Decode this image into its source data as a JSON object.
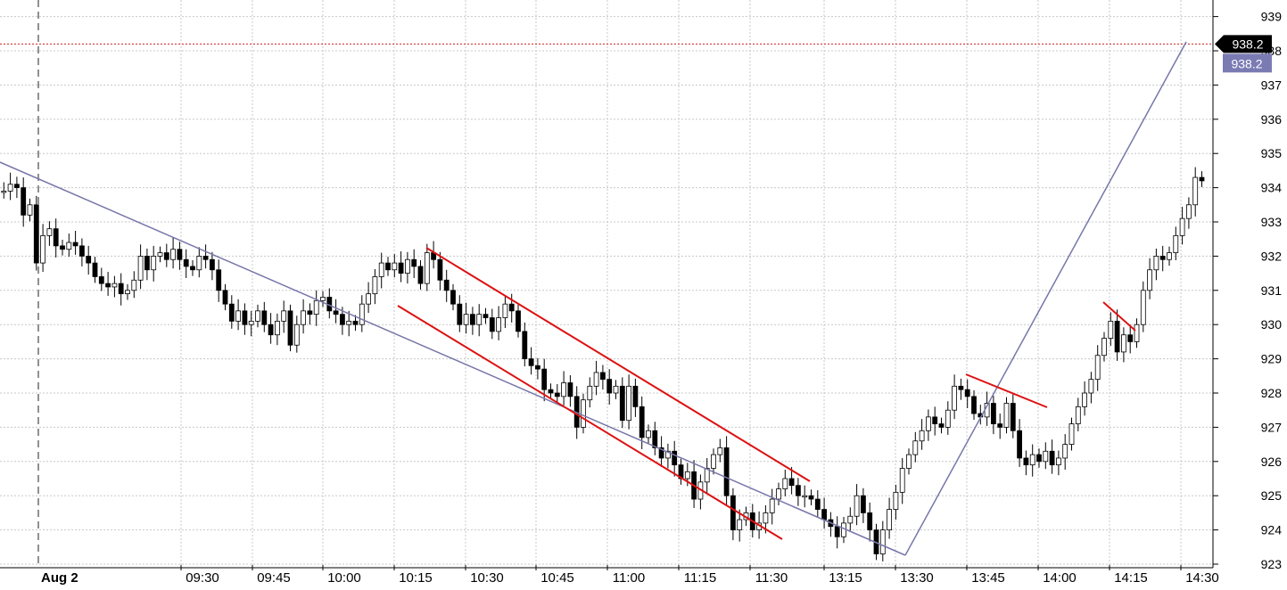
{
  "chart_data": {
    "type": "candlestick",
    "date_label": "Aug 2",
    "x_ticks": [
      "09:30",
      "09:45",
      "10:00",
      "10:15",
      "10:30",
      "10:45",
      "11:00",
      "11:15",
      "11:30",
      "13:15",
      "13:30",
      "13:45",
      "14:00",
      "14:15",
      "14:30"
    ],
    "y_ticks": [
      923,
      924,
      925,
      926,
      927,
      928,
      929,
      930,
      931,
      932,
      933,
      934,
      935,
      936,
      937,
      938,
      939
    ],
    "ylim": [
      922.7,
      939.4
    ],
    "grid": true,
    "last_price": 938.2,
    "last_price_label": "938.2",
    "projected_price_label": "938.2",
    "closes": [
      933.9,
      933.9,
      934.1,
      934.0,
      933.2,
      933.5,
      931.8,
      932.6,
      932.8,
      932.3,
      932.2,
      932.4,
      932.3,
      932.0,
      931.8,
      931.4,
      931.2,
      931.1,
      931.2,
      930.9,
      931.0,
      931.3,
      932.0,
      931.6,
      932.0,
      932.1,
      931.9,
      932.2,
      931.9,
      931.7,
      931.6,
      932.0,
      931.9,
      931.6,
      931.0,
      930.6,
      930.1,
      930.4,
      930.0,
      930.1,
      930.4,
      930.0,
      929.7,
      930.1,
      930.4,
      929.4,
      930.0,
      930.4,
      930.3,
      930.7,
      930.8,
      930.4,
      930.3,
      930.0,
      930.1,
      930.0,
      930.6,
      930.9,
      931.4,
      931.8,
      931.6,
      931.8,
      931.5,
      931.9,
      931.7,
      931.2,
      932.1,
      931.9,
      931.3,
      931.0,
      930.6,
      930.0,
      930.3,
      930.0,
      930.3,
      930.2,
      929.8,
      930.2,
      930.6,
      930.4,
      929.8,
      929.0,
      928.8,
      928.7,
      928.1,
      928.0,
      927.9,
      928.3,
      927.9,
      927.0,
      927.8,
      928.2,
      928.6,
      928.4,
      928.0,
      928.2,
      927.2,
      928.2,
      927.6,
      926.7,
      926.9,
      926.4,
      926.1,
      926.3,
      925.9,
      925.5,
      925.7,
      924.9,
      925.4,
      925.8,
      926.2,
      926.4,
      925.0,
      924.0,
      924.3,
      924.5,
      924.0,
      924.2,
      924.5,
      924.9,
      925.2,
      925.5,
      925.3,
      925.0,
      925.0,
      924.9,
      924.6,
      924.3,
      924.1,
      923.8,
      924.2,
      924.4,
      925.0,
      924.5,
      924.0,
      923.3,
      924.0,
      924.6,
      925.1,
      925.8,
      926.2,
      926.6,
      926.9,
      927.3,
      927.1,
      927.0,
      927.5,
      928.2,
      928.1,
      927.9,
      927.4,
      927.3,
      927.7,
      927.1,
      927.0,
      927.7,
      926.9,
      926.1,
      925.9,
      926.2,
      926.0,
      926.3,
      925.9,
      926.1,
      926.5,
      927.1,
      927.6,
      928.0,
      928.4,
      929.1,
      929.6,
      930.1,
      929.2,
      929.7,
      929.5,
      930.0,
      931.0,
      931.6,
      932.0,
      931.9,
      932.1,
      932.6,
      933.1,
      933.5,
      934.3,
      934.2
    ]
  }
}
